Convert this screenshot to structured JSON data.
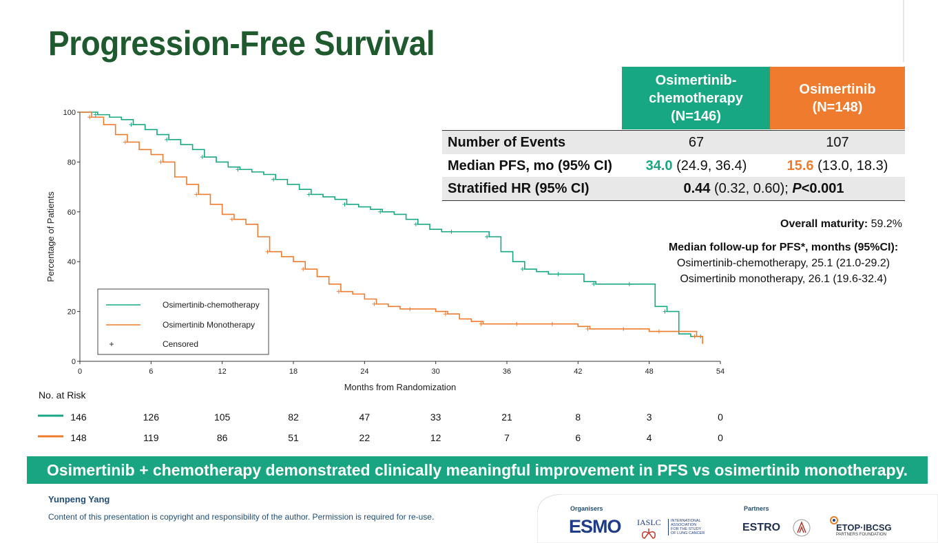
{
  "slide": {
    "title": "Progression-Free Survival",
    "banner": "Osimertinib + chemotherapy demonstrated clinically meaningful improvement in PFS vs osimertinib monotherapy.",
    "author": "Yunpeng Yang",
    "copyright": "Content of this presentation is copyright and responsibility of the author. Permission is required for re-use."
  },
  "table": {
    "col1_header": [
      "Osimertinib-",
      "chemotherapy",
      "(N=146)"
    ],
    "col2_header": [
      "Osimertinib",
      "(N=148)"
    ],
    "rows": {
      "events": {
        "label": "Number of Events",
        "c1": "67",
        "c2": "107"
      },
      "median": {
        "label": "Median PFS, mo (95% CI)",
        "c1_value": "34.0",
        "c1_ci": " (24.9, 36.4)",
        "c2_value": "15.6",
        "c2_ci": " (13.0, 18.3)"
      },
      "hr": {
        "label": "Stratified HR (95% CI)",
        "value": "0.44",
        "ci": " (0.32, 0.60); ",
        "p_label": "P",
        "p_value": "<0.001"
      }
    },
    "colors": {
      "osi_chemo": "#17a883",
      "osi": "#ee7b2e"
    }
  },
  "maturity": {
    "label": "Overall maturity:",
    "value": " 59.2%"
  },
  "followup": {
    "title": "Median follow-up for PFS*, months (95%CI):",
    "line1": "Osimertinib-chemotherapy, 25.1 (21.0-29.2)",
    "line2": "Osimertinib monotherapy, 26.1 (19.6-32.4)"
  },
  "risk_table": {
    "label": "No. at Risk",
    "times": [
      0,
      6,
      12,
      18,
      24,
      30,
      36,
      42,
      48,
      54
    ],
    "osi_chemo": [
      "146",
      "126",
      "105",
      "82",
      "47",
      "33",
      "21",
      "8",
      "3",
      "0"
    ],
    "osi": [
      "148",
      "119",
      "86",
      "51",
      "22",
      "12",
      "7",
      "6",
      "4",
      "0"
    ]
  },
  "logos": {
    "organisers_label": "Organisers",
    "partners_label": "Partners",
    "esmo": "ESMO",
    "iaslc": "IASLC",
    "iaslc_sub": [
      "INTERNATIONAL",
      "ASSOCIATION",
      "FOR THE STUDY",
      "OF LUNG CANCER"
    ],
    "estro": "ESTRO",
    "etop": "ETOP·IBCSG",
    "etop_sub": "PARTNERS FOUNDATION"
  },
  "chart_data": {
    "type": "line",
    "xlabel": "Months from Randomization",
    "ylabel": "Percentage of Patients",
    "xlim": [
      0,
      54
    ],
    "ylim": [
      0,
      100
    ],
    "xticks": [
      0,
      6,
      12,
      18,
      24,
      30,
      36,
      42,
      48,
      54
    ],
    "yticks": [
      0,
      20,
      40,
      60,
      80,
      100
    ],
    "legend": {
      "placement": "bottom-left",
      "entries": [
        "Osimertinib-chemotherapy",
        "Osimertinib Monotherapy",
        "Censored"
      ],
      "censor_symbol": "+"
    },
    "series": [
      {
        "name": "Osimertinib-chemotherapy",
        "color": "#17a883",
        "x": [
          0,
          1.5,
          2.5,
          3.5,
          4.5,
          5.5,
          6.5,
          7.5,
          8.5,
          9.5,
          10.5,
          11.5,
          12.5,
          13.5,
          14.5,
          15.5,
          16.5,
          17.5,
          18.5,
          19.5,
          20.5,
          21.5,
          22.5,
          23.5,
          24.5,
          25.5,
          26.5,
          27.5,
          28.5,
          29.5,
          30.5,
          31.5,
          32.5,
          33.5,
          34.5,
          35.5,
          36.5,
          37.5,
          38.5,
          39.5,
          40.5,
          41.5,
          42.5,
          43.5,
          44.5,
          45.5,
          46.5,
          47.5,
          48.5,
          49.5,
          50.5,
          51.5,
          52.5
        ],
        "y": [
          100,
          99,
          98,
          97,
          95,
          93,
          91,
          89,
          87,
          85,
          82,
          80,
          78,
          77,
          76,
          75,
          73,
          71,
          69,
          67,
          66,
          65,
          63,
          62,
          61,
          60,
          59,
          57,
          55,
          53,
          52,
          52,
          52,
          52,
          50,
          44,
          40,
          37,
          36,
          35,
          35,
          35,
          32,
          31,
          31,
          31,
          31,
          31,
          22,
          20,
          11,
          10,
          10
        ]
      },
      {
        "name": "Osimertinib Monotherapy",
        "color": "#ee7b2e",
        "x": [
          0,
          1,
          2,
          3,
          4,
          5,
          6,
          7,
          8,
          9,
          10,
          11,
          12,
          13,
          14,
          15,
          16,
          17,
          18,
          19,
          20,
          21,
          22,
          23,
          24,
          25,
          26,
          27,
          28,
          29,
          30,
          31,
          32,
          33,
          34,
          35,
          36,
          37,
          38,
          39,
          40,
          41,
          42,
          43,
          44,
          45,
          46,
          47,
          48,
          49,
          50,
          51,
          52,
          52.5
        ],
        "y": [
          100,
          98,
          95,
          91,
          88,
          85,
          83,
          80,
          74,
          71,
          67,
          63,
          59,
          57,
          55,
          50,
          44,
          42,
          40,
          37,
          34,
          31,
          28,
          27,
          25,
          23,
          22,
          21,
          21,
          21,
          20,
          19,
          17,
          16,
          15,
          15,
          15,
          15,
          15,
          15,
          15,
          15,
          14,
          13,
          13,
          13,
          13,
          13,
          12,
          12,
          12,
          12,
          10,
          7
        ]
      }
    ]
  }
}
